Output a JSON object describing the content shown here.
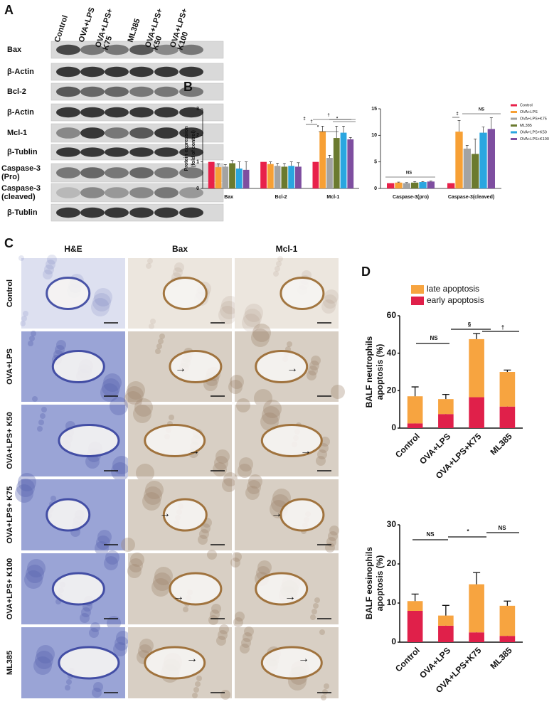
{
  "panel_labels": [
    "A",
    "B",
    "C",
    "D"
  ],
  "blot": {
    "lanes": [
      "Control",
      "OVA+LPS",
      "OVA+LPS+ K75",
      "ML385",
      "OVA+LPS+ K50",
      "OVA+LPS+ K100"
    ],
    "rows": [
      "Bax",
      "β-Actin",
      "Bcl-2",
      "β-Actin",
      "Mcl-1",
      "β-Tublin",
      "Caspase-3 (Pro)",
      "Caspase-3 (cleaved)",
      "β-Tublin"
    ]
  },
  "histology": {
    "columns": [
      "H&E",
      "Bax",
      "Mcl-1"
    ],
    "rows": [
      "Control",
      "OVA+LPS",
      "OVA+LPS+ K50",
      "OVA+LPS+ K75",
      "OVA+LPS+ K100",
      "ML385"
    ]
  },
  "chart_data": [
    {
      "type": "bar",
      "stacked": false,
      "y_label": [
        "Protein expression",
        "(fold of control)"
      ],
      "categories": [
        "Bax",
        "Bcl-2",
        "Mcl-1"
      ],
      "ylim": [
        0,
        3
      ],
      "yticks": [
        0,
        1,
        2,
        3
      ],
      "series": [
        {
          "color": "#e8214a",
          "values": [
            1,
            1,
            1
          ]
        },
        {
          "color": "#f7a035",
          "values": [
            0.8,
            0.92,
            2.15
          ],
          "errors": [
            0.12,
            0.08,
            0.2
          ]
        },
        {
          "color": "#a3a3a3",
          "values": [
            0.82,
            0.85,
            1.15
          ],
          "errors": [
            0.08,
            0.1,
            0.1
          ]
        },
        {
          "color": "#6b7a2f",
          "values": [
            0.95,
            0.82,
            1.9
          ],
          "errors": [
            0.1,
            0.12,
            0.45
          ]
        },
        {
          "color": "#2aa6e0",
          "values": [
            0.75,
            0.85,
            2.1
          ],
          "errors": [
            0.25,
            0.15,
            0.25
          ]
        },
        {
          "color": "#7e4ea0",
          "values": [
            0.7,
            0.82,
            1.85
          ],
          "errors": [
            0.3,
            0.15,
            0.07
          ]
        }
      ],
      "annotations": [
        "‡",
        "†",
        "*",
        "†",
        "*"
      ]
    },
    {
      "type": "bar",
      "stacked": false,
      "legend": "right",
      "categories": [
        "Caspase-3(pro)",
        "Caspase-3(cleaved)"
      ],
      "ylim": [
        0,
        15
      ],
      "yticks": [
        0,
        5,
        10,
        15
      ],
      "series": [
        {
          "name": "Control",
          "color": "#e8214a",
          "values": [
            1,
            1
          ]
        },
        {
          "name": "OVA+LPS",
          "color": "#f7a035",
          "values": [
            1.1,
            10.7
          ],
          "errors": [
            0.1,
            2.1
          ]
        },
        {
          "name": "OVA+LPS+K75",
          "color": "#a3a3a3",
          "values": [
            1.0,
            7.5
          ],
          "errors": [
            0.1,
            0.6
          ]
        },
        {
          "name": "ML385",
          "color": "#6b7a2f",
          "values": [
            1.1,
            6.5
          ],
          "errors": [
            0.2,
            2.8
          ]
        },
        {
          "name": "OVA+LPS+K50",
          "color": "#2aa6e0",
          "values": [
            1.2,
            10.5
          ],
          "errors": [
            0.1,
            1.1
          ]
        },
        {
          "name": "OVA+LPS+K100",
          "color": "#7e4ea0",
          "values": [
            1.3,
            11.2
          ],
          "errors": [
            0.1,
            2.1
          ]
        }
      ],
      "annotations": [
        "NS",
        "‡",
        "NS"
      ]
    },
    {
      "type": "bar",
      "stacked": true,
      "legend": "top",
      "y_label": [
        "BALF neutrophils",
        "apoptosis (%)"
      ],
      "categories": [
        "Control",
        "OVA+LPS",
        "OVA+LPS+K75",
        "ML385"
      ],
      "ylim": [
        0,
        60
      ],
      "yticks": [
        0,
        20,
        40,
        60
      ],
      "series": [
        {
          "name": "early apoptosis",
          "color": "#e0204a",
          "values": [
            2.5,
            7.5,
            16.5,
            11.5
          ],
          "errors": [
            0.5,
            3,
            1.5,
            1.5
          ]
        },
        {
          "name": "late apoptosis",
          "color": "#f7a440",
          "values": [
            14.5,
            8,
            31,
            18.5
          ],
          "errors": [
            5,
            2.5,
            3,
            1
          ]
        }
      ],
      "annotations": [
        "NS",
        "§",
        "†"
      ]
    },
    {
      "type": "bar",
      "stacked": true,
      "y_label": [
        "BALF eosinophils",
        "apoptosis (%)"
      ],
      "categories": [
        "Control",
        "OVA+LPS",
        "OVA+LPS+K75",
        "ML385"
      ],
      "ylim": [
        0,
        30
      ],
      "yticks": [
        0,
        10,
        20,
        30
      ],
      "series": [
        {
          "color": "#e0204a",
          "values": [
            8,
            4.2,
            2.5,
            1.6
          ],
          "errors": [
            1,
            2,
            0.7,
            0.3
          ]
        },
        {
          "color": "#f7a440",
          "values": [
            2.5,
            2.6,
            12.3,
            7.7
          ],
          "errors": [
            1.8,
            2.6,
            3,
            1.2
          ]
        }
      ],
      "annotations": [
        "NS",
        "*",
        "NS"
      ]
    }
  ]
}
